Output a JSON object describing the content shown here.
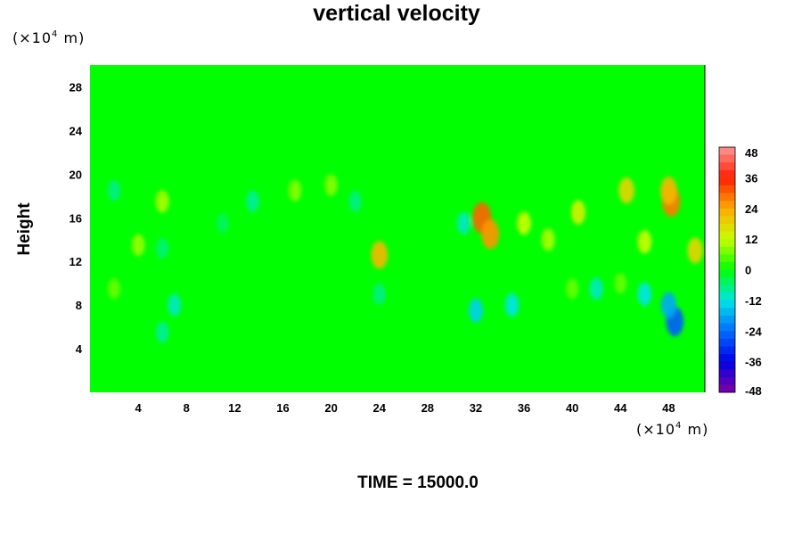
{
  "chart_data": {
    "type": "heatmap",
    "title": "vertical velocity",
    "ylabel": "Height",
    "xlabel": "",
    "x_unit": {
      "prefix": "(×10",
      "exp": "4",
      "suffix": " m)"
    },
    "y_unit": {
      "prefix": "(×10",
      "exp": "4",
      "suffix": " m)"
    },
    "xlim": [
      0,
      51
    ],
    "ylim": [
      0,
      30
    ],
    "x_ticks": [
      4,
      8,
      12,
      16,
      20,
      24,
      28,
      32,
      36,
      40,
      44,
      48
    ],
    "y_ticks": [
      4,
      8,
      12,
      16,
      20,
      24,
      28
    ],
    "colorbar": {
      "ticks": [
        48,
        36,
        24,
        12,
        0,
        -12,
        -24,
        -36,
        -48
      ],
      "range": [
        -48,
        48
      ],
      "levels": 32
    },
    "background_value": 0,
    "features": [
      {
        "x": 2,
        "y": 18.5,
        "value": -7
      },
      {
        "x": 6,
        "y": 17.5,
        "value": 10
      },
      {
        "x": 13.5,
        "y": 17.5,
        "value": -8
      },
      {
        "x": 11,
        "y": 15.5,
        "value": -5
      },
      {
        "x": 22,
        "y": 17.5,
        "value": -7
      },
      {
        "x": 17,
        "y": 18.5,
        "value": 8
      },
      {
        "x": 20,
        "y": 19,
        "value": 8
      },
      {
        "x": 4,
        "y": 13.5,
        "value": 9
      },
      {
        "x": 6,
        "y": 13.2,
        "value": -6
      },
      {
        "x": 24,
        "y": 12.6,
        "value": 22
      },
      {
        "x": 32.5,
        "y": 16,
        "value": 30
      },
      {
        "x": 33.2,
        "y": 14.5,
        "value": 26
      },
      {
        "x": 31,
        "y": 15.5,
        "value": -10
      },
      {
        "x": 36,
        "y": 15.5,
        "value": 12
      },
      {
        "x": 38,
        "y": 14,
        "value": 10
      },
      {
        "x": 40.5,
        "y": 16.5,
        "value": 14
      },
      {
        "x": 44.5,
        "y": 18.5,
        "value": 18
      },
      {
        "x": 48.2,
        "y": 17.5,
        "value": 28
      },
      {
        "x": 48,
        "y": 18.5,
        "value": 22
      },
      {
        "x": 50.2,
        "y": 13,
        "value": 18
      },
      {
        "x": 46,
        "y": 13.8,
        "value": 12
      },
      {
        "x": 32,
        "y": 7.5,
        "value": -14
      },
      {
        "x": 35,
        "y": 8,
        "value": -12
      },
      {
        "x": 46,
        "y": 9,
        "value": -12
      },
      {
        "x": 48.5,
        "y": 6.5,
        "value": -26
      },
      {
        "x": 48,
        "y": 8,
        "value": -18
      },
      {
        "x": 7,
        "y": 8,
        "value": -10
      },
      {
        "x": 6,
        "y": 5.5,
        "value": -8
      },
      {
        "x": 24,
        "y": 9,
        "value": -7
      },
      {
        "x": 42,
        "y": 9.5,
        "value": -10
      },
      {
        "x": 2,
        "y": 9.5,
        "value": 6
      },
      {
        "x": 40,
        "y": 9.5,
        "value": 6
      },
      {
        "x": 44,
        "y": 10,
        "value": 6
      }
    ]
  },
  "time_label": "TIME = 15000.0"
}
